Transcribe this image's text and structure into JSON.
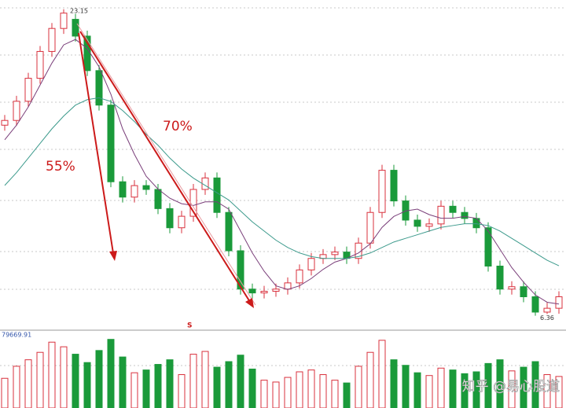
{
  "chart_data": {
    "type": "candlestick",
    "open": [
      16.8,
      17.06,
      18.11,
      19.37,
      20.84,
      22.1,
      22.6,
      21.68,
      19.79,
      17.9,
      13.7,
      12.86,
      13.49,
      13.28,
      12.23,
      11.18,
      11.81,
      13.28,
      13.91,
      12.02,
      9.92,
      7.82,
      7.61,
      7.7,
      7.82,
      8.16,
      8.87,
      9.5,
      9.71,
      9.85,
      9.5,
      10.34,
      12.02,
      14.33,
      12.65,
      11.6,
      11.26,
      11.39,
      12.36,
      12.02,
      11.69,
      11.18,
      9.08,
      7.82,
      7.95,
      7.4,
      6.56,
      6.77
    ],
    "high": [
      17.36,
      18.41,
      19.67,
      21.14,
      22.4,
      23.15,
      22.9,
      21.98,
      20.09,
      18.2,
      14.0,
      13.79,
      13.79,
      13.58,
      12.53,
      12.11,
      13.58,
      14.21,
      14.21,
      12.32,
      10.22,
      8.12,
      8.0,
      8.12,
      8.46,
      9.17,
      9.8,
      10.01,
      10.15,
      10.15,
      10.64,
      12.32,
      14.63,
      14.63,
      12.95,
      11.9,
      11.69,
      12.66,
      12.66,
      12.32,
      11.99,
      11.48,
      9.38,
      8.25,
      8.25,
      7.7,
      7.07,
      7.7
    ],
    "low": [
      16.5,
      16.76,
      17.81,
      19.07,
      20.54,
      21.8,
      21.38,
      19.49,
      17.6,
      13.4,
      12.56,
      12.56,
      12.98,
      11.93,
      10.88,
      10.88,
      11.51,
      12.98,
      11.72,
      9.62,
      7.52,
      7.31,
      7.31,
      7.4,
      7.52,
      7.86,
      8.57,
      9.2,
      9.41,
      9.2,
      9.2,
      10.04,
      11.72,
      12.35,
      11.3,
      10.96,
      10.96,
      11.09,
      11.72,
      11.39,
      10.88,
      8.78,
      7.52,
      7.52,
      7.1,
      6.36,
      6.45,
      6.47
    ],
    "close": [
      17.06,
      18.11,
      19.37,
      20.84,
      22.1,
      22.94,
      21.68,
      19.79,
      17.9,
      13.7,
      12.86,
      13.49,
      13.28,
      12.23,
      11.18,
      11.81,
      13.28,
      13.91,
      12.02,
      9.92,
      7.82,
      7.61,
      7.7,
      7.82,
      8.16,
      8.87,
      9.5,
      9.71,
      9.85,
      9.5,
      10.34,
      12.02,
      14.33,
      12.65,
      11.6,
      11.26,
      11.39,
      12.36,
      12.02,
      11.69,
      11.18,
      9.08,
      7.82,
      7.95,
      7.4,
      6.56,
      6.77,
      7.4
    ],
    "ma_series": [
      {
        "color": "#7a3f7a",
        "values": [
          16.0,
          16.8,
          17.8,
          19.0,
          20.2,
          21.2,
          21.5,
          21.0,
          20.0,
          18.5,
          16.6,
          15.2,
          14.0,
          13.3,
          12.8,
          12.5,
          12.4,
          12.6,
          12.6,
          12.2,
          11.0,
          9.8,
          8.8,
          8.0,
          7.8,
          8.0,
          8.4,
          8.9,
          9.3,
          9.5,
          9.8,
          10.3,
          11.2,
          11.8,
          12.1,
          12.2,
          11.9,
          11.7,
          11.7,
          11.8,
          11.7,
          11.0,
          10.0,
          9.0,
          8.2,
          7.5,
          7.1,
          7.0
        ]
      },
      {
        "color": "#3c9a8c",
        "values": [
          13.5,
          14.2,
          15.0,
          15.8,
          16.6,
          17.3,
          17.9,
          18.2,
          18.3,
          18.1,
          17.6,
          17.0,
          16.3,
          15.7,
          15.0,
          14.4,
          13.9,
          13.5,
          13.1,
          12.7,
          12.1,
          11.5,
          11.0,
          10.5,
          10.1,
          9.8,
          9.6,
          9.5,
          9.5,
          9.5,
          9.6,
          9.8,
          10.1,
          10.4,
          10.6,
          10.8,
          11.0,
          11.2,
          11.3,
          11.4,
          11.4,
          11.3,
          11.0,
          10.6,
          10.2,
          9.8,
          9.4,
          9.1
        ]
      }
    ],
    "ylim": [
      6.0,
      23.4
    ],
    "volume": [
      32000,
      45000,
      52000,
      60000,
      71000,
      66000,
      58000,
      49000,
      62000,
      74000,
      55000,
      38000,
      41000,
      47000,
      52000,
      36000,
      58000,
      61000,
      44000,
      50000,
      57000,
      42000,
      30000,
      28000,
      33000,
      39000,
      41000,
      36000,
      30000,
      27000,
      45000,
      60000,
      73000,
      52000,
      46000,
      38000,
      35000,
      43000,
      41000,
      37000,
      39000,
      48000,
      52000,
      40000,
      44000,
      50000,
      36000,
      34000
    ],
    "volume_yticks": [
      79669.91
    ],
    "volume_ylim": [
      0,
      79669.91
    ],
    "annotations": [
      "55%",
      "70%"
    ],
    "signal": "S",
    "watermark": "知乎 @易心股道",
    "up_color": "#d9313d",
    "down_color": "#1a9a3a"
  }
}
